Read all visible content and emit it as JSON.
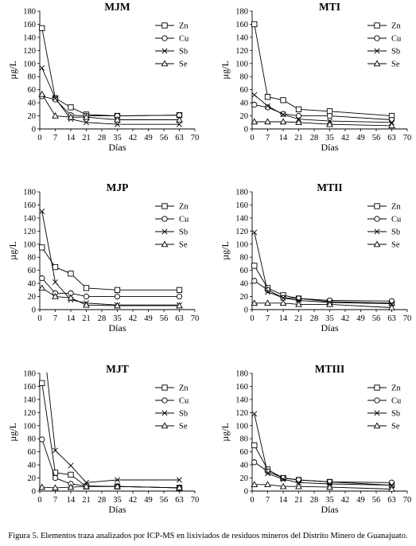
{
  "caption": "Figura 5. Elementos traza analizados por ICP-MS en lixiviados de residuos mineros del Distrito Minero de Guanajuato.",
  "chart_data": [
    {
      "type": "line",
      "title": "MJM",
      "xlabel": "Días",
      "ylabel": "µg/L",
      "xlim": [
        0,
        70
      ],
      "ylim": [
        0,
        180
      ],
      "xticks": [
        0,
        7,
        14,
        21,
        28,
        35,
        42,
        49,
        56,
        63,
        70
      ],
      "yticks": [
        0,
        20,
        40,
        60,
        80,
        100,
        120,
        140,
        160,
        180
      ],
      "grid": false,
      "legend": "top-right",
      "series": [
        {
          "name": "Zn",
          "marker": "square",
          "x": [
            1,
            7,
            14,
            21,
            35,
            63
          ],
          "y": [
            154,
            47,
            33,
            22,
            20,
            21
          ]
        },
        {
          "name": "Cu",
          "marker": "circle",
          "x": [
            1,
            7,
            14,
            21,
            35,
            63
          ],
          "y": [
            50,
            45,
            21,
            20,
            20,
            21
          ]
        },
        {
          "name": "Sb",
          "marker": "x",
          "x": [
            1,
            7,
            14,
            21,
            35,
            63
          ],
          "y": [
            93,
            47,
            15,
            10,
            7,
            7
          ]
        },
        {
          "name": "Se",
          "marker": "triangle",
          "x": [
            1,
            7,
            14,
            21,
            35,
            63
          ],
          "y": [
            53,
            20,
            18,
            18,
            14,
            14
          ]
        }
      ]
    },
    {
      "type": "line",
      "title": "MTI",
      "xlabel": "Días",
      "ylabel": "µg/L",
      "xlim": [
        0,
        70
      ],
      "ylim": [
        0,
        180
      ],
      "xticks": [
        0,
        7,
        14,
        21,
        28,
        35,
        42,
        49,
        56,
        63,
        70
      ],
      "yticks": [
        0,
        20,
        40,
        60,
        80,
        100,
        120,
        140,
        160,
        180
      ],
      "grid": false,
      "legend": "top-right",
      "series": [
        {
          "name": "Zn",
          "marker": "square",
          "x": [
            1,
            7,
            14,
            21,
            35,
            63
          ],
          "y": [
            160,
            49,
            44,
            30,
            27,
            20
          ]
        },
        {
          "name": "Cu",
          "marker": "circle",
          "x": [
            1,
            7,
            14,
            21,
            35,
            63
          ],
          "y": [
            37,
            33,
            23,
            20,
            20,
            14
          ]
        },
        {
          "name": "Sb",
          "marker": "x",
          "x": [
            1,
            7,
            14,
            21,
            35,
            63
          ],
          "y": [
            52,
            35,
            22,
            15,
            12,
            10
          ]
        },
        {
          "name": "Se",
          "marker": "triangle",
          "x": [
            1,
            7,
            14,
            21,
            35,
            63
          ],
          "y": [
            11,
            11,
            11,
            10,
            7,
            5
          ]
        }
      ]
    },
    {
      "type": "line",
      "title": "MJP",
      "xlabel": "Días",
      "ylabel": "µg/L",
      "xlim": [
        0,
        70
      ],
      "ylim": [
        0,
        180
      ],
      "xticks": [
        0,
        7,
        14,
        21,
        28,
        35,
        42,
        49,
        56,
        63,
        70
      ],
      "yticks": [
        0,
        20,
        40,
        60,
        80,
        100,
        120,
        140,
        160,
        180
      ],
      "grid": false,
      "legend": "top-right",
      "series": [
        {
          "name": "Zn",
          "marker": "square",
          "x": [
            1,
            7,
            14,
            21,
            35,
            63
          ],
          "y": [
            95,
            65,
            55,
            33,
            30,
            30
          ]
        },
        {
          "name": "Cu",
          "marker": "circle",
          "x": [
            1,
            7,
            14,
            21,
            35,
            63
          ],
          "y": [
            48,
            25,
            25,
            20,
            20,
            20
          ]
        },
        {
          "name": "Sb",
          "marker": "x",
          "x": [
            1,
            7,
            14,
            21,
            35,
            63
          ],
          "y": [
            150,
            42,
            15,
            10,
            7,
            7
          ]
        },
        {
          "name": "Se",
          "marker": "triangle",
          "x": [
            1,
            7,
            14,
            21,
            35,
            63
          ],
          "y": [
            33,
            20,
            18,
            7,
            6,
            6
          ]
        }
      ]
    },
    {
      "type": "line",
      "title": "MTII",
      "xlabel": "Días",
      "ylabel": "µg/L",
      "xlim": [
        0,
        70
      ],
      "ylim": [
        0,
        180
      ],
      "xticks": [
        0,
        7,
        14,
        21,
        28,
        35,
        42,
        49,
        56,
        63,
        70
      ],
      "yticks": [
        0,
        20,
        40,
        60,
        80,
        100,
        120,
        140,
        160,
        180
      ],
      "grid": false,
      "legend": "top-right",
      "series": [
        {
          "name": "Zn",
          "marker": "square",
          "x": [
            1,
            7,
            14,
            21,
            35,
            63
          ],
          "y": [
            67,
            33,
            22,
            17,
            12,
            10
          ]
        },
        {
          "name": "Cu",
          "marker": "circle",
          "x": [
            1,
            7,
            14,
            21,
            35,
            63
          ],
          "y": [
            44,
            30,
            18,
            17,
            14,
            13
          ]
        },
        {
          "name": "Sb",
          "marker": "x",
          "x": [
            1,
            7,
            14,
            21,
            35,
            63
          ],
          "y": [
            118,
            27,
            18,
            14,
            11,
            9
          ]
        },
        {
          "name": "Se",
          "marker": "triangle",
          "x": [
            1,
            7,
            14,
            21,
            35,
            63
          ],
          "y": [
            10,
            10,
            10,
            8,
            8,
            3
          ]
        }
      ]
    },
    {
      "type": "line",
      "title": "MJT",
      "xlabel": "Días",
      "ylabel": "µg/L",
      "xlim": [
        0,
        70
      ],
      "ylim": [
        0,
        180
      ],
      "xticks": [
        0,
        7,
        14,
        21,
        28,
        35,
        42,
        49,
        56,
        63,
        70
      ],
      "yticks": [
        0,
        20,
        40,
        60,
        80,
        100,
        120,
        140,
        160,
        180
      ],
      "grid": false,
      "legend": "top-right",
      "series": [
        {
          "name": "Zn",
          "marker": "square",
          "x": [
            1,
            7,
            14,
            21,
            35,
            63
          ],
          "y": [
            165,
            28,
            25,
            7,
            7,
            5
          ]
        },
        {
          "name": "Cu",
          "marker": "circle",
          "x": [
            1,
            7,
            14,
            21,
            35,
            63
          ],
          "y": [
            79,
            20,
            11,
            8,
            7,
            5
          ]
        },
        {
          "name": "Sb",
          "marker": "x",
          "x": [
            1,
            7,
            14,
            21,
            35,
            63
          ],
          "y": [
            250,
            62,
            39,
            13,
            17,
            17
          ]
        },
        {
          "name": "Se",
          "marker": "triangle",
          "x": [
            1,
            7,
            14,
            21,
            35,
            63
          ],
          "y": [
            6,
            5,
            6,
            7,
            7,
            5
          ]
        }
      ]
    },
    {
      "type": "line",
      "title": "MTIII",
      "xlabel": "Días",
      "ylabel": "µg/L",
      "xlim": [
        0,
        70
      ],
      "ylim": [
        0,
        180
      ],
      "xticks": [
        0,
        7,
        14,
        21,
        28,
        35,
        42,
        49,
        56,
        63,
        70
      ],
      "yticks": [
        0,
        20,
        40,
        60,
        80,
        100,
        120,
        140,
        160,
        180
      ],
      "grid": false,
      "legend": "top-right",
      "series": [
        {
          "name": "Zn",
          "marker": "square",
          "x": [
            1,
            7,
            14,
            21,
            35,
            63
          ],
          "y": [
            70,
            33,
            20,
            17,
            14,
            9
          ]
        },
        {
          "name": "Cu",
          "marker": "circle",
          "x": [
            1,
            7,
            14,
            21,
            35,
            63
          ],
          "y": [
            44,
            30,
            20,
            17,
            14,
            13
          ]
        },
        {
          "name": "Sb",
          "marker": "x",
          "x": [
            1,
            7,
            14,
            21,
            35,
            63
          ],
          "y": [
            118,
            27,
            18,
            13,
            11,
            9
          ]
        },
        {
          "name": "Se",
          "marker": "triangle",
          "x": [
            1,
            7,
            14,
            21,
            35,
            63
          ],
          "y": [
            10,
            10,
            7,
            7,
            6,
            3
          ]
        }
      ]
    }
  ]
}
